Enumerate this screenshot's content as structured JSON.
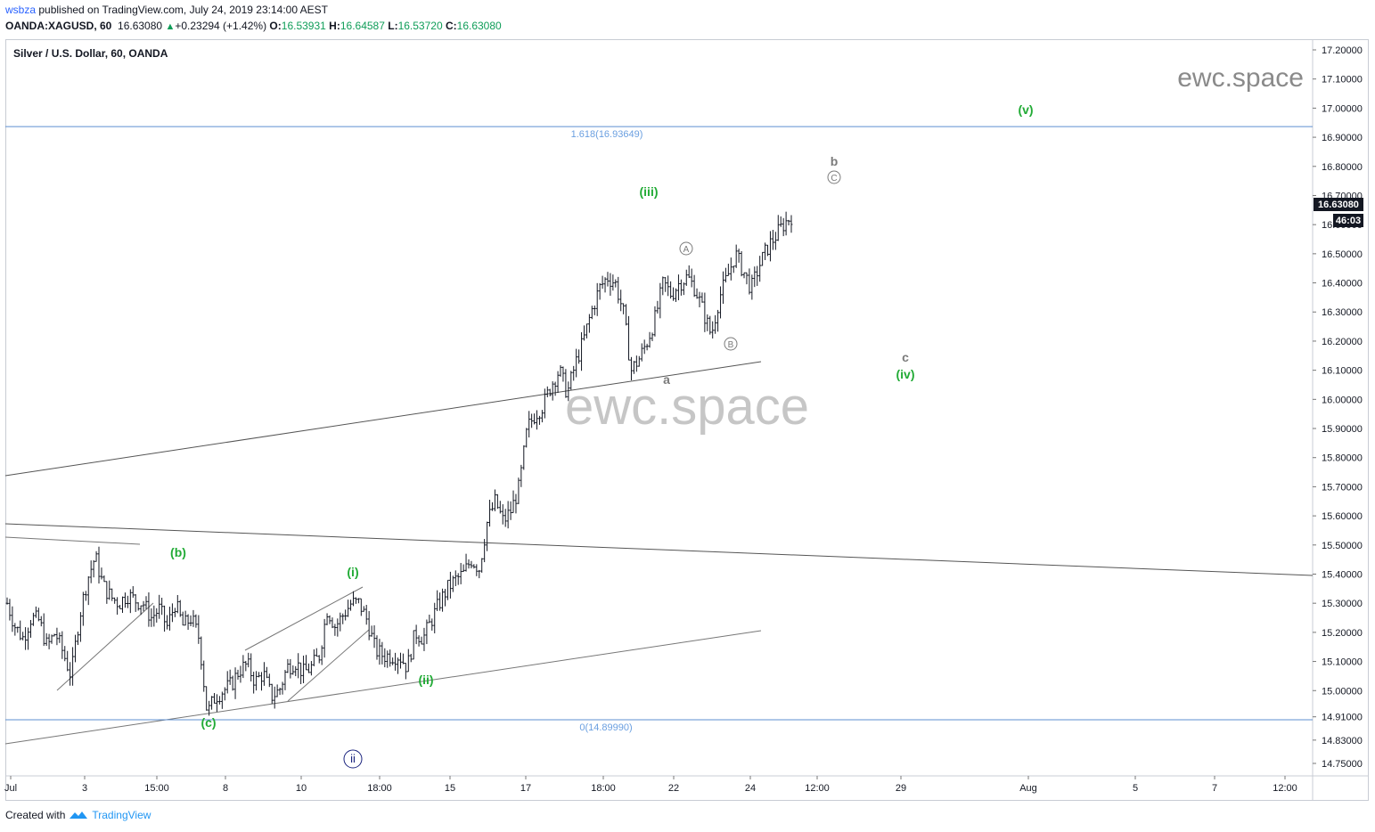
{
  "header": {
    "user": "wsbza",
    "published": " published on TradingView.com, July 24, 2019 23:14:00 AEST",
    "symbol": "OANDA:XAGUSD, 60",
    "last": "16.63080",
    "change": "+0.23294 (+1.42%)",
    "o_label": "O:",
    "o_value": "16.53931",
    "h_label": "H:",
    "h_value": "16.64587",
    "l_label": "L:",
    "l_value": "16.53720",
    "c_label": "C:",
    "c_value": "16.63080"
  },
  "chart_title": "Silver / U.S. Dollar, 60, OANDA",
  "watermark_small": "ewc.space",
  "watermark_big": "ewc.space",
  "footer": {
    "created_with": "Created with",
    "brand": "TradingView"
  },
  "price_tag": {
    "value": "16.63080",
    "countdown": "46:03"
  },
  "colors": {
    "wave_green": "#22ab36",
    "fib_blue": "#6a9fe0",
    "candle": "#131722",
    "grey_label": "#7b7b7b",
    "dark_blue": "#1a237e"
  },
  "chart_data": {
    "type": "candlestick",
    "ylim": [
      14.68,
      17.26
    ],
    "y_ticks": [
      "17.20000",
      "17.10000",
      "17.00000",
      "16.90000",
      "16.80000",
      "16.70000",
      "16.60000",
      "16.50000",
      "16.40000",
      "16.30000",
      "16.20000",
      "16.10000",
      "16.00000",
      "15.90000",
      "15.80000",
      "15.70000",
      "15.60000",
      "15.50000",
      "15.40000",
      "15.30000",
      "15.20000",
      "15.10000",
      "15.00000",
      "14.91000",
      "14.83000",
      "14.75000"
    ],
    "x_ticks": [
      "Jul",
      "3",
      "15:00",
      "8",
      "10",
      "18:00",
      "15",
      "17",
      "18:00",
      "22",
      "24",
      "12:00",
      "29",
      "Aug",
      "5",
      "7",
      "12:00"
    ],
    "close_path": [
      [
        0,
        15.3
      ],
      [
        0.02,
        15.22
      ],
      [
        0.04,
        15.18
      ],
      [
        0.06,
        15.25
      ],
      [
        0.08,
        15.24
      ],
      [
        0.1,
        15.15
      ],
      [
        0.12,
        15.2
      ],
      [
        0.14,
        15.13
      ],
      [
        0.16,
        15.05
      ],
      [
        0.18,
        15.25
      ],
      [
        0.2,
        15.38
      ],
      [
        0.22,
        15.46
      ],
      [
        0.24,
        15.36
      ],
      [
        0.26,
        15.32
      ],
      [
        0.28,
        15.3
      ],
      [
        0.3,
        15.33
      ],
      [
        0.32,
        15.31
      ],
      [
        0.34,
        15.3
      ],
      [
        0.36,
        15.25
      ],
      [
        0.38,
        15.28
      ],
      [
        0.4,
        15.22
      ],
      [
        0.42,
        15.3
      ],
      [
        0.44,
        15.22
      ],
      [
        0.46,
        15.25
      ],
      [
        0.48,
        15.18
      ],
      [
        0.5,
        14.92
      ],
      [
        0.52,
        14.98
      ],
      [
        0.54,
        15.0
      ],
      [
        0.56,
        15.02
      ],
      [
        0.58,
        15.07
      ],
      [
        0.6,
        15.09
      ],
      [
        0.62,
        15.03
      ],
      [
        0.64,
        15.06
      ],
      [
        0.66,
        14.98
      ],
      [
        0.68,
        15.0
      ],
      [
        0.7,
        15.08
      ],
      [
        0.72,
        15.1
      ],
      [
        0.74,
        15.06
      ],
      [
        0.76,
        15.08
      ],
      [
        0.78,
        15.12
      ],
      [
        0.8,
        15.28
      ],
      [
        0.82,
        15.22
      ],
      [
        0.84,
        15.26
      ],
      [
        0.86,
        15.3
      ],
      [
        0.88,
        15.3
      ],
      [
        0.9,
        15.24
      ],
      [
        0.92,
        15.14
      ],
      [
        0.94,
        15.12
      ],
      [
        0.96,
        15.12
      ],
      [
        0.98,
        15.12
      ],
      [
        1.0,
        15.08
      ],
      [
        1.02,
        15.2
      ],
      [
        1.04,
        15.18
      ],
      [
        1.06,
        15.24
      ],
      [
        1.08,
        15.3
      ],
      [
        1.1,
        15.35
      ],
      [
        1.12,
        15.38
      ],
      [
        1.14,
        15.4
      ],
      [
        1.16,
        15.45
      ],
      [
        1.18,
        15.42
      ],
      [
        1.2,
        15.58
      ],
      [
        1.22,
        15.65
      ],
      [
        1.24,
        15.58
      ],
      [
        1.26,
        15.62
      ],
      [
        1.28,
        15.7
      ],
      [
        1.3,
        15.9
      ],
      [
        1.32,
        15.95
      ],
      [
        1.34,
        15.98
      ],
      [
        1.36,
        16.05
      ],
      [
        1.38,
        16.1
      ],
      [
        1.4,
        16.02
      ],
      [
        1.42,
        16.12
      ],
      [
        1.44,
        16.2
      ],
      [
        1.46,
        16.3
      ],
      [
        1.48,
        16.38
      ],
      [
        1.5,
        16.42
      ],
      [
        1.52,
        16.4
      ],
      [
        1.54,
        16.3
      ],
      [
        1.56,
        16.1
      ],
      [
        1.58,
        16.14
      ],
      [
        1.6,
        16.2
      ],
      [
        1.62,
        16.28
      ],
      [
        1.64,
        16.4
      ],
      [
        1.66,
        16.36
      ],
      [
        1.68,
        16.4
      ],
      [
        1.7,
        16.42
      ],
      [
        1.72,
        16.38
      ],
      [
        1.74,
        16.3
      ],
      [
        1.76,
        16.22
      ],
      [
        1.78,
        16.35
      ],
      [
        1.8,
        16.42
      ],
      [
        1.82,
        16.5
      ],
      [
        1.84,
        16.44
      ],
      [
        1.86,
        16.38
      ],
      [
        1.88,
        16.46
      ],
      [
        1.9,
        16.52
      ],
      [
        1.92,
        16.56
      ],
      [
        1.94,
        16.6
      ],
      [
        1.96,
        16.63
      ]
    ],
    "fib_levels": [
      {
        "ratio": "1.618",
        "price": 16.93649,
        "label": "1.618(16.93649)"
      },
      {
        "ratio": "0",
        "price": 14.8999,
        "label": "0(14.89990)"
      }
    ],
    "wave_labels": [
      {
        "text": "(b)",
        "color": "green",
        "price": 15.45
      },
      {
        "text": "(c)",
        "color": "green",
        "price": 14.87
      },
      {
        "text": "ii",
        "color": "dark_blue",
        "price": 14.76,
        "circled": true
      },
      {
        "text": "(i)",
        "color": "green",
        "price": 15.38
      },
      {
        "text": "(ii)",
        "color": "green",
        "price": 15.0
      },
      {
        "text": "(iii)",
        "color": "green",
        "price": 16.68
      },
      {
        "text": "a",
        "color": "grey",
        "price": 16.01
      },
      {
        "text": "A",
        "color": "grey",
        "price": 16.56,
        "circled": true
      },
      {
        "text": "B",
        "color": "grey",
        "price": 16.18,
        "circled": true
      },
      {
        "text": "b",
        "color": "grey",
        "price": 16.79
      },
      {
        "text": "C",
        "color": "grey",
        "price": 16.73,
        "circled": true
      },
      {
        "text": "c",
        "color": "grey",
        "price": 16.09
      },
      {
        "text": "(iv)",
        "color": "green",
        "price": 16.03
      },
      {
        "text": "(v)",
        "color": "green",
        "price": 17.0
      }
    ]
  }
}
